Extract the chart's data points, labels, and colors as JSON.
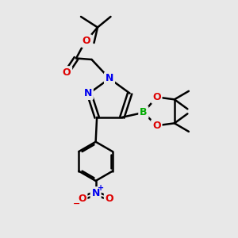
{
  "bg_color": "#e8e8e8",
  "atom_colors": {
    "C": "#000000",
    "N": "#0000ee",
    "O": "#dd0000",
    "B": "#00aa00"
  },
  "bond_color": "#000000",
  "bond_width": 1.8,
  "figsize": [
    3.0,
    3.0
  ],
  "dpi": 100
}
